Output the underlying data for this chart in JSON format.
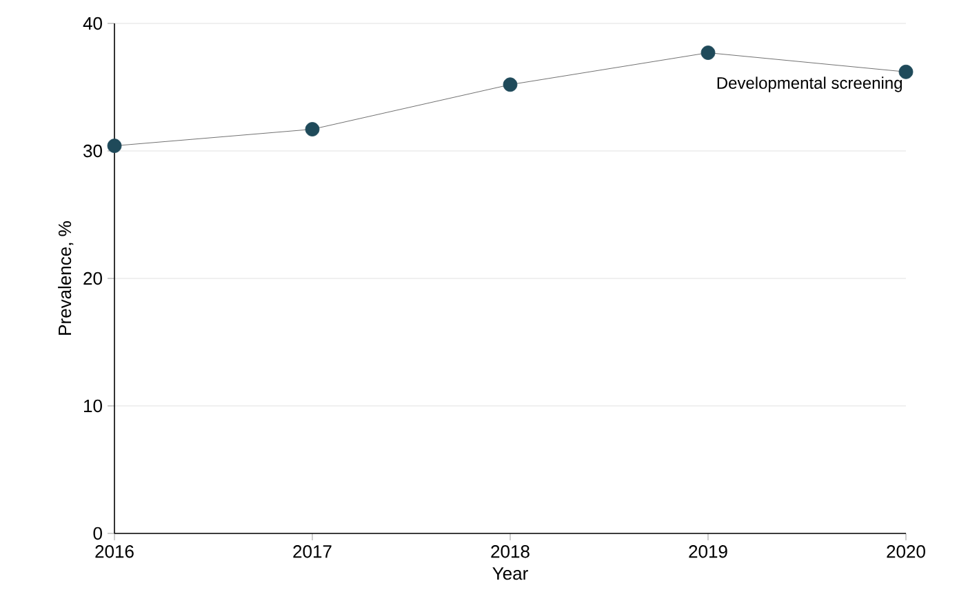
{
  "chart_data": {
    "type": "line",
    "xlabel": "Year",
    "ylabel": "Prevalence, %",
    "x": [
      2016,
      2017,
      2018,
      2019,
      2020
    ],
    "series": [
      {
        "name": "Developmental screening",
        "color": "#1f4a5a",
        "values": [
          30.4,
          31.7,
          35.2,
          37.7,
          36.2
        ]
      }
    ],
    "xlim": [
      2016,
      2020
    ],
    "xticks": [
      2016,
      2017,
      2018,
      2019,
      2020
    ],
    "ylim": [
      0,
      40
    ],
    "yticks": [
      0,
      10,
      20,
      30,
      40
    ],
    "grid": "y",
    "legend": false,
    "marker": "circle",
    "line_style": "solid"
  }
}
